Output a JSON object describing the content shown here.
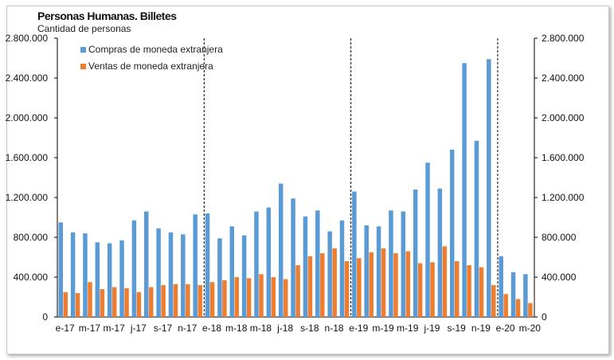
{
  "chart_data": {
    "type": "bar",
    "title": "Personas Humanas. Billetes",
    "subtitle": "Cantidad de personas",
    "xlabel": "",
    "ylabel": "",
    "ylim": [
      0,
      2800000
    ],
    "yticks": [
      "0",
      "400.000",
      "800.000",
      "1.200.000",
      "1.600.000",
      "2.000.000",
      "2.400.000",
      "2.800.000"
    ],
    "secondary_yticks": [
      "0",
      "400.000",
      "800.000",
      "1.200.000",
      "1.600.000",
      "2.000.000",
      "2.400.000",
      "2.800.000"
    ],
    "grid": false,
    "legend": "top-left",
    "categories": [
      "e-17",
      "f-17",
      "m-17",
      "a-17",
      "m-17",
      "j-17",
      "j-17",
      "a-17",
      "s-17",
      "o-17",
      "n-17",
      "d-17",
      "e-18",
      "f-18",
      "m-18",
      "a-18",
      "m-18",
      "j-18",
      "j-18",
      "a-18",
      "s-18",
      "o-18",
      "n-18",
      "d-18",
      "e-19",
      "f-19",
      "m-19",
      "a-19",
      "m-19",
      "j-19",
      "j-19",
      "a-19",
      "s-19",
      "o-19",
      "n-19",
      "d-19",
      "e-20",
      "f-20",
      "m-20"
    ],
    "tick_labels": [
      "e-17",
      "m-17",
      "m-17",
      "j-17",
      "s-17",
      "n-17",
      "e-18",
      "m-18",
      "m-18",
      "j-18",
      "s-18",
      "n-18",
      "e-19",
      "m-19",
      "m-19",
      "j-19",
      "s-19",
      "n-19",
      "e-20",
      "m-20"
    ],
    "year_separators_after": [
      "d-17",
      "d-18",
      "d-19"
    ],
    "series": [
      {
        "name": "Compras de moneda extranjera",
        "color": "#5b9bd5",
        "values": [
          950000,
          850000,
          840000,
          750000,
          740000,
          770000,
          970000,
          1060000,
          890000,
          850000,
          830000,
          1030000,
          1040000,
          790000,
          910000,
          820000,
          1060000,
          1100000,
          1340000,
          1190000,
          1010000,
          1070000,
          860000,
          970000,
          1260000,
          920000,
          910000,
          1070000,
          1060000,
          1280000,
          1550000,
          1290000,
          1680000,
          2550000,
          1770000,
          2590000,
          610000,
          450000,
          430000
        ]
      },
      {
        "name": "Ventas de moneda extranjera",
        "color": "#ed7d31",
        "values": [
          250000,
          240000,
          350000,
          280000,
          300000,
          290000,
          250000,
          300000,
          320000,
          330000,
          330000,
          320000,
          350000,
          370000,
          400000,
          390000,
          430000,
          400000,
          380000,
          520000,
          610000,
          640000,
          690000,
          560000,
          590000,
          650000,
          690000,
          640000,
          660000,
          540000,
          550000,
          710000,
          560000,
          520000,
          500000,
          320000,
          230000,
          180000,
          140000
        ]
      }
    ]
  }
}
